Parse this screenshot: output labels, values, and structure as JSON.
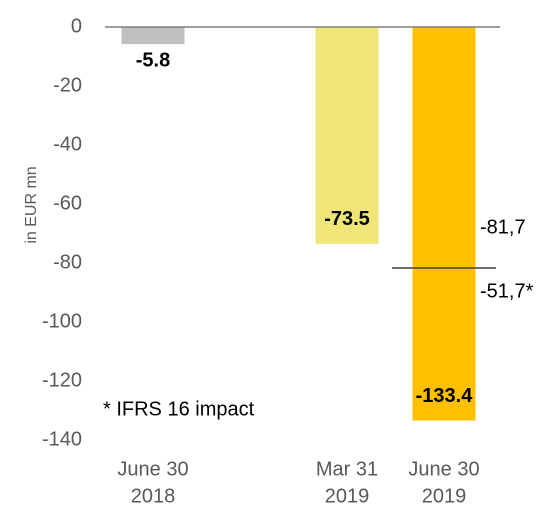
{
  "chart_data": {
    "type": "bar",
    "y_label": "in EUR mn",
    "categories": [
      [
        "June 30",
        "2018"
      ],
      null,
      [
        "Mar 31",
        "2019"
      ],
      [
        "June 30",
        "2019"
      ]
    ],
    "values": [
      -5.8,
      null,
      -73.5,
      -133.4
    ],
    "colors": [
      "#bfbfbf",
      null,
      "#f0e678",
      "#ffc000"
    ],
    "ylim": [
      0,
      -140
    ],
    "yticks": [
      0,
      -20,
      -40,
      -60,
      -80,
      -100,
      -120,
      -140
    ],
    "split": {
      "category": 3,
      "segments": [
        {
          "value": -81.7,
          "label": "-81,7"
        },
        {
          "value": -51.7,
          "label": "-51,7*"
        }
      ]
    },
    "note": "* IFRS 16 impact"
  }
}
